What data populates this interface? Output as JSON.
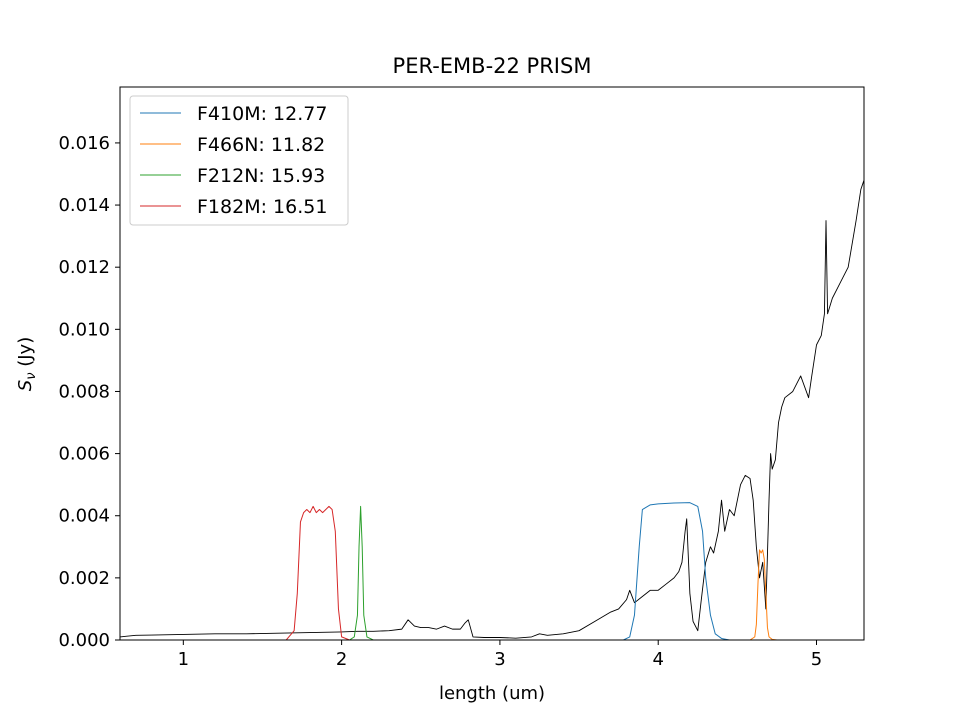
{
  "chart_data": {
    "type": "line",
    "title": "PER-EMB-22 PRISM",
    "xlabel": "length (um)",
    "ylabel": "S_ν (Jy)",
    "xlim": [
      0.6,
      5.3
    ],
    "ylim": [
      0.0,
      0.0178
    ],
    "x_ticks": [
      1,
      2,
      3,
      4,
      5
    ],
    "x_tick_labels": [
      "1",
      "2",
      "3",
      "4",
      "5"
    ],
    "y_ticks": [
      0.0,
      0.002,
      0.004,
      0.006,
      0.008,
      0.01,
      0.012,
      0.014,
      0.016
    ],
    "y_tick_labels": [
      "0.000",
      "0.002",
      "0.004",
      "0.006",
      "0.008",
      "0.010",
      "0.012",
      "0.014",
      "0.016"
    ],
    "grid": false,
    "legend_position": "top-left",
    "legend": [
      {
        "label": "F410M: 12.77",
        "color": "#1f77b4"
      },
      {
        "label": "F466N: 11.82",
        "color": "#ff7f0e"
      },
      {
        "label": "F212N: 15.93",
        "color": "#2ca02c"
      },
      {
        "label": "F182M: 16.51",
        "color": "#d62728"
      }
    ],
    "series": [
      {
        "color": "#000000",
        "x": [
          0.6,
          0.7,
          0.8,
          1.0,
          1.2,
          1.4,
          1.6,
          1.8,
          2.0,
          2.1,
          2.2,
          2.3,
          2.38,
          2.42,
          2.46,
          2.5,
          2.55,
          2.6,
          2.65,
          2.7,
          2.75,
          2.78,
          2.8,
          2.83,
          2.9,
          3.0,
          3.1,
          3.2,
          3.25,
          3.3,
          3.4,
          3.5,
          3.6,
          3.7,
          3.75,
          3.8,
          3.82,
          3.85,
          3.9,
          3.95,
          4.0,
          4.05,
          4.1,
          4.13,
          4.15,
          4.17,
          4.18,
          4.2,
          4.22,
          4.25,
          4.27,
          4.3,
          4.33,
          4.35,
          4.38,
          4.4,
          4.42,
          4.45,
          4.48,
          4.5,
          4.52,
          4.55,
          4.58,
          4.6,
          4.62,
          4.64,
          4.66,
          4.68,
          4.7,
          4.71,
          4.72,
          4.74,
          4.76,
          4.78,
          4.8,
          4.85,
          4.9,
          4.95,
          4.97,
          5.0,
          5.03,
          5.05,
          5.06,
          5.07,
          5.1,
          5.15,
          5.2,
          5.25,
          5.28,
          5.3
        ],
        "y": [
          0.0001,
          0.00015,
          0.00016,
          0.00018,
          0.0002,
          0.0002,
          0.00022,
          0.00024,
          0.00026,
          0.00028,
          0.00028,
          0.0003,
          0.00035,
          0.00065,
          0.00045,
          0.0004,
          0.0004,
          0.00035,
          0.00045,
          0.00035,
          0.00035,
          0.00055,
          0.00065,
          0.0001,
          8e-05,
          8e-05,
          6e-05,
          0.0001,
          0.0002,
          0.00015,
          0.0002,
          0.0003,
          0.0006,
          0.0009,
          0.001,
          0.0013,
          0.0016,
          0.0012,
          0.0014,
          0.0016,
          0.0016,
          0.0018,
          0.002,
          0.0022,
          0.0025,
          0.0035,
          0.0039,
          0.0015,
          0.0006,
          0.0003,
          0.0012,
          0.0025,
          0.003,
          0.0028,
          0.0035,
          0.0045,
          0.0035,
          0.0042,
          0.004,
          0.0045,
          0.005,
          0.0053,
          0.0052,
          0.0045,
          0.003,
          0.002,
          0.0025,
          0.001,
          0.0045,
          0.006,
          0.0055,
          0.0058,
          0.007,
          0.0075,
          0.0078,
          0.008,
          0.0085,
          0.0078,
          0.0085,
          0.0095,
          0.0098,
          0.0105,
          0.0135,
          0.0105,
          0.011,
          0.0115,
          0.012,
          0.0135,
          0.0145,
          0.0148
        ]
      },
      {
        "name": "F410M: 12.77",
        "color": "#1f77b4",
        "x": [
          3.78,
          3.82,
          3.85,
          3.88,
          3.9,
          3.95,
          4.0,
          4.1,
          4.2,
          4.25,
          4.28,
          4.3,
          4.33,
          4.36,
          4.4,
          4.45
        ],
        "y": [
          0.0,
          0.0001,
          0.0008,
          0.003,
          0.0042,
          0.00435,
          0.00438,
          0.00441,
          0.00442,
          0.0043,
          0.0035,
          0.002,
          0.0008,
          0.0002,
          5e-05,
          0.0
        ]
      },
      {
        "name": "F466N: 11.82",
        "color": "#ff7f0e",
        "x": [
          4.58,
          4.61,
          4.62,
          4.63,
          4.64,
          4.65,
          4.66,
          4.67,
          4.68,
          4.69,
          4.7,
          4.72,
          4.75
        ],
        "y": [
          0.0,
          0.0001,
          0.0005,
          0.0018,
          0.0029,
          0.0028,
          0.0029,
          0.0026,
          0.0015,
          0.0004,
          0.0001,
          2e-05,
          0.0
        ]
      },
      {
        "name": "F212N: 15.93",
        "color": "#2ca02c",
        "x": [
          2.05,
          2.08,
          2.1,
          2.11,
          2.12,
          2.13,
          2.14,
          2.16,
          2.2
        ],
        "y": [
          0.0,
          0.0001,
          0.0008,
          0.003,
          0.0043,
          0.003,
          0.0008,
          0.0001,
          0.0
        ]
      },
      {
        "name": "F182M: 16.51",
        "color": "#d62728",
        "x": [
          1.65,
          1.7,
          1.72,
          1.74,
          1.76,
          1.78,
          1.8,
          1.82,
          1.84,
          1.86,
          1.88,
          1.9,
          1.92,
          1.94,
          1.96,
          1.98,
          2.0,
          2.05
        ],
        "y": [
          0.0,
          0.0003,
          0.0015,
          0.0038,
          0.0041,
          0.0042,
          0.0041,
          0.0043,
          0.0041,
          0.0042,
          0.0041,
          0.0042,
          0.0043,
          0.0042,
          0.0035,
          0.001,
          0.0001,
          0.0
        ]
      }
    ]
  }
}
